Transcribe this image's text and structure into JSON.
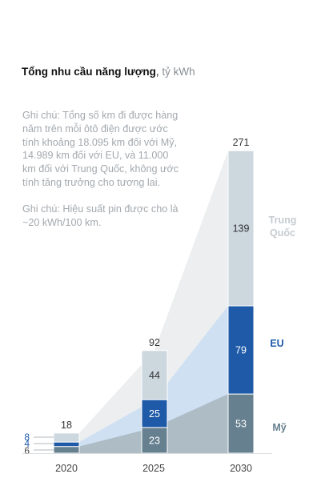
{
  "title": "Tổng nhu cầu năng lượng",
  "unit": "tỷ kWh",
  "notes": [
    "Ghi chú: Tổng số km đi được hàng năm trên mỗi ôtô điện được ước tính khoảng 18.095 km đối với Mỹ, 14.989 km đối với EU, và 11.000 km đối với Trung Quốc, không ước tính tăng trưởng cho tương lai.",
    "Ghi chú: Hiệu suất pin được cho là ~20 kWh/100 km."
  ],
  "chart_data": {
    "type": "bar",
    "stacked": true,
    "categories": [
      "2020",
      "2025",
      "2030"
    ],
    "series": [
      {
        "name": "Mỹ",
        "values": [
          6,
          23,
          53
        ],
        "color": "#66808f",
        "area_color": "#aebcc6"
      },
      {
        "name": "EU",
        "values": [
          4,
          25,
          79
        ],
        "color": "#1f5aa8",
        "area_color": "#cfe0f3"
      },
      {
        "name": "Trung Quốc",
        "values": [
          8,
          44,
          139
        ],
        "color": "#cdd7de",
        "area_color": "#eceeef"
      }
    ],
    "totals": [
      18,
      92,
      271
    ],
    "legend_colors": {
      "Mỹ": "#66808f",
      "EU": "#1f5aa8",
      "Trung Quốc": "#c6ccd1"
    },
    "segment_labels": {
      "0": {
        "Mỹ": "6",
        "EU": "4",
        "Trung Quốc": "8"
      },
      "1": {
        "Mỹ": "23",
        "EU": "25",
        "Trung Quốc": "44"
      },
      "2": {
        "Mỹ": "53",
        "EU": "79",
        "Trung Quốc": "139"
      }
    },
    "ylim": [
      0,
      271
    ],
    "grid": false,
    "legend": "right, inline labels"
  }
}
